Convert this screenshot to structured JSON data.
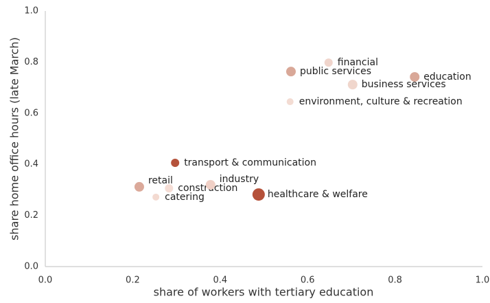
{
  "chart_data": {
    "type": "scatter",
    "xlabel": "share of workers with tertiary education",
    "ylabel": "share home office hours (late March)",
    "labels": [
      "financial",
      "public services",
      "education",
      "business services",
      "environment, culture & recreation",
      "transport & communication",
      "retail",
      "construction",
      "catering",
      "industry",
      "healthcare & welfare"
    ],
    "x": [
      0.648,
      0.562,
      0.845,
      0.703,
      0.56,
      0.297,
      0.215,
      0.283,
      0.253,
      0.378,
      0.488
    ],
    "y": [
      0.798,
      0.763,
      0.742,
      0.712,
      0.645,
      0.406,
      0.312,
      0.306,
      0.272,
      0.32,
      0.282
    ],
    "sizes": [
      36,
      49,
      49,
      49,
      25,
      36,
      49,
      36,
      25,
      49,
      81
    ],
    "colors": [
      "#f0d5cc",
      "#d9a898",
      "#d9a898",
      "#f0d6cc",
      "#f3dcd3",
      "#b5533b",
      "#dba99a",
      "#f5ddd5",
      "#f3dad1",
      "#f0d0c6",
      "#b5513a"
    ],
    "xlim": [
      0,
      1
    ],
    "ylim": [
      0,
      1
    ],
    "xticks": [
      {
        "value": 0,
        "label": "0.0"
      },
      0.2,
      0.4,
      0.6,
      0.8,
      {
        "value": 1,
        "label": "1.0"
      }
    ],
    "yticks": [
      {
        "value": 0,
        "label": "0.0"
      },
      0.2,
      0.4,
      0.6,
      0.8,
      {
        "value": 1,
        "label": "1.0"
      }
    ]
  }
}
